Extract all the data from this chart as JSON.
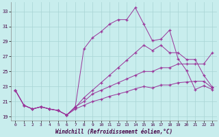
{
  "xlabel": "Windchill (Refroidissement éolien,°C)",
  "xlim": [
    -0.5,
    23.5
  ],
  "ylim": [
    18.5,
    34.2
  ],
  "yticks": [
    19,
    21,
    23,
    25,
    27,
    29,
    31,
    33
  ],
  "xticks": [
    0,
    1,
    2,
    3,
    4,
    5,
    6,
    7,
    8,
    9,
    10,
    11,
    12,
    13,
    14,
    15,
    16,
    17,
    18,
    19,
    20,
    21,
    22,
    23
  ],
  "bg_color": "#c8eded",
  "grid_color": "#a8d4d4",
  "line_color": "#993399",
  "lines": [
    [
      22.5,
      20.5,
      20.0,
      20.3,
      20.0,
      19.8,
      19.2,
      20.3,
      28.0,
      29.5,
      30.3,
      31.3,
      31.9,
      31.9,
      33.5,
      31.3,
      29.1,
      29.3,
      30.5,
      26.7,
      25.1,
      22.6,
      23.1,
      22.6
    ],
    [
      22.5,
      20.5,
      20.0,
      20.3,
      20.0,
      19.8,
      19.2,
      20.2,
      21.5,
      22.5,
      23.5,
      24.5,
      25.5,
      26.5,
      27.5,
      28.5,
      27.8,
      28.5,
      27.5,
      27.5,
      26.6,
      26.6,
      24.5,
      22.9
    ],
    [
      22.5,
      20.5,
      20.0,
      20.3,
      20.0,
      19.8,
      19.2,
      20.3,
      21.0,
      22.0,
      22.5,
      23.0,
      23.5,
      24.0,
      24.5,
      25.0,
      25.0,
      25.5,
      25.5,
      26.0,
      26.0,
      26.0,
      26.0,
      27.5
    ],
    [
      22.5,
      20.5,
      20.0,
      20.3,
      20.0,
      19.8,
      19.2,
      20.0,
      20.5,
      21.0,
      21.3,
      21.7,
      22.0,
      22.3,
      22.7,
      23.0,
      22.8,
      23.2,
      23.2,
      23.5,
      23.6,
      23.7,
      23.7,
      22.8
    ]
  ]
}
